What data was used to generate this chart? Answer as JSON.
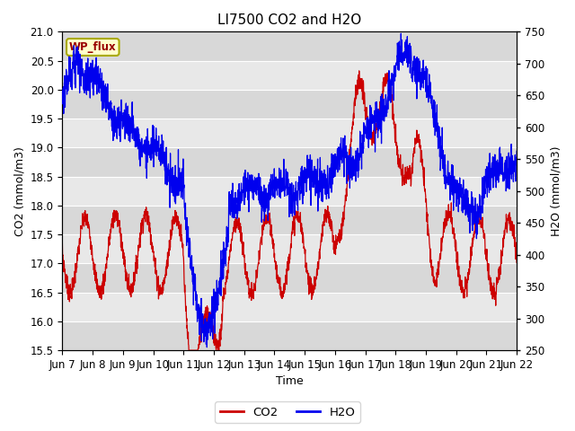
{
  "title": "LI7500 CO2 and H2O",
  "xlabel": "Time",
  "ylabel_left": "CO2 (mmol/m3)",
  "ylabel_right": "H2O (mmol/m3)",
  "ylim_left": [
    15.5,
    21.0
  ],
  "ylim_right": [
    250,
    750
  ],
  "yticks_left": [
    15.5,
    16.0,
    16.5,
    17.0,
    17.5,
    18.0,
    18.5,
    19.0,
    19.5,
    20.0,
    20.5,
    21.0
  ],
  "yticks_right": [
    250,
    300,
    350,
    400,
    450,
    500,
    550,
    600,
    650,
    700,
    750
  ],
  "xtick_labels": [
    "Jun 7",
    "Jun 8",
    "Jun 9",
    "Jun 10",
    "Jun 11",
    "Jun 12",
    "Jun 13",
    "Jun 14",
    "Jun 15",
    "Jun 16",
    "Jun 17",
    "Jun 18",
    "Jun 19",
    "Jun 20",
    "Jun 21",
    "Jun 22"
  ],
  "co2_color": "#cc0000",
  "h2o_color": "#0000ee",
  "plot_bg_color": "#e0e0e0",
  "fig_bg_color": "#ffffff",
  "grid_color": "#ffffff",
  "band_colors": [
    "#d8d8d8",
    "#e8e8e8"
  ],
  "legend_co2": "CO2",
  "legend_h2o": "H2O",
  "wp_flux_label": "WP_flux",
  "wp_flux_bg": "#ffffcc",
  "wp_flux_border": "#aaaa00",
  "title_fontsize": 11,
  "label_fontsize": 9,
  "tick_fontsize": 8.5
}
